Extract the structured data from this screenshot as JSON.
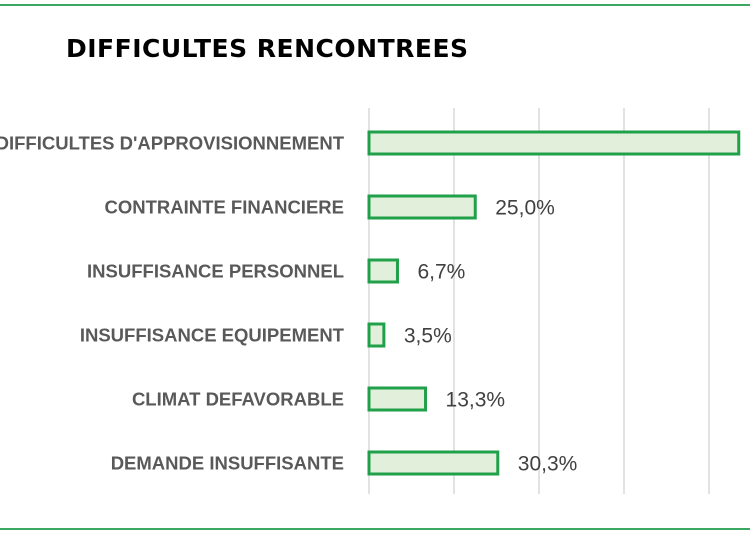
{
  "chart_data": {
    "type": "bar",
    "orientation": "horizontal",
    "title": "DIFFICULTES RENCONTREES",
    "categories": [
      "DIFFICULTES D'APPROVISIONNEMENT",
      "CONTRAINTE FINANCIERE",
      "INSUFFISANCE PERSONNEL",
      "INSUFFISANCE EQUIPEMENT",
      "CLIMAT DEFAVORABLE",
      "DEMANDE INSUFFISANTE"
    ],
    "values": [
      87.0,
      25.0,
      6.7,
      3.5,
      13.3,
      30.3
    ],
    "data_labels": [
      "",
      "25,0%",
      "6,7%",
      "3,5%",
      "13,3%",
      "30,3%"
    ],
    "xlim": [
      0,
      100
    ],
    "grid": true,
    "legend": "none",
    "colors": {
      "bar_fill": "#e2efda",
      "bar_border": "#21a04a",
      "frame": "#3aa860"
    }
  }
}
